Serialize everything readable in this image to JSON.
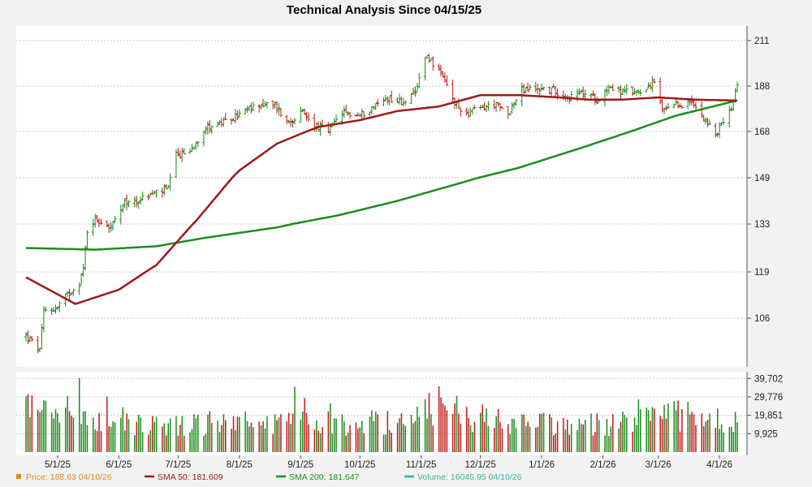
{
  "chart_data": {
    "type": "stock",
    "title": "Technical Analysis Since 04/15/25",
    "price_axis": {
      "ylim": [
        92,
        215
      ],
      "ticks": [
        106,
        119,
        133,
        149,
        168,
        188,
        211
      ],
      "tick_labels": [
        "106",
        "119",
        "133",
        "149",
        "168",
        "188",
        "211"
      ]
    },
    "volume_axis": {
      "ylim": [
        0,
        42000
      ],
      "ticks": [
        9925,
        19851,
        29776,
        39702
      ],
      "tick_labels": [
        "9,925",
        "19,851",
        "29,776",
        "39,702"
      ]
    },
    "x_axis": {
      "tick_labels": [
        "5/1/25",
        "6/1/25",
        "7/1/25",
        "8/1/25",
        "9/1/25",
        "10/1/25",
        "11/1/25",
        "12/1/25",
        "1/1/26",
        "2/1/26",
        "3/1/26",
        "4/1/26"
      ]
    },
    "close_anchors": [
      [
        "2025-04-15",
        101
      ],
      [
        "2025-04-22",
        97
      ],
      [
        "2025-04-24",
        108
      ],
      [
        "2025-05-01",
        109
      ],
      [
        "2025-05-05",
        112
      ],
      [
        "2025-05-12",
        116
      ],
      [
        "2025-05-14",
        120
      ],
      [
        "2025-05-16",
        131
      ],
      [
        "2025-05-20",
        135
      ],
      [
        "2025-05-28",
        132
      ],
      [
        "2025-06-04",
        140
      ],
      [
        "2025-06-10",
        141
      ],
      [
        "2025-06-20",
        144
      ],
      [
        "2025-06-26",
        145
      ],
      [
        "2025-06-30",
        158
      ],
      [
        "2025-07-07",
        160
      ],
      [
        "2025-07-15",
        170
      ],
      [
        "2025-07-25",
        172
      ],
      [
        "2025-08-04",
        177
      ],
      [
        "2025-08-11",
        180
      ],
      [
        "2025-08-20",
        179
      ],
      [
        "2025-08-25",
        172
      ],
      [
        "2025-09-02",
        176
      ],
      [
        "2025-09-08",
        171
      ],
      [
        "2025-09-15",
        168
      ],
      [
        "2025-09-22",
        176
      ],
      [
        "2025-10-01",
        175
      ],
      [
        "2025-10-08",
        179
      ],
      [
        "2025-10-15",
        183
      ],
      [
        "2025-10-22",
        181
      ],
      [
        "2025-10-29",
        184
      ],
      [
        "2025-11-03",
        204
      ],
      [
        "2025-11-06",
        201
      ],
      [
        "2025-11-12",
        192
      ],
      [
        "2025-11-18",
        180
      ],
      [
        "2025-11-24",
        176
      ],
      [
        "2025-12-01",
        178
      ],
      [
        "2025-12-08",
        180
      ],
      [
        "2025-12-15",
        176
      ],
      [
        "2025-12-22",
        186
      ],
      [
        "2025-12-31",
        187
      ],
      [
        "2026-01-08",
        186
      ],
      [
        "2026-01-15",
        183
      ],
      [
        "2026-01-22",
        185
      ],
      [
        "2026-01-29",
        182
      ],
      [
        "2026-02-04",
        188
      ],
      [
        "2026-02-12",
        185
      ],
      [
        "2026-02-20",
        186
      ],
      [
        "2026-02-27",
        190
      ],
      [
        "2026-03-03",
        177
      ],
      [
        "2026-03-10",
        179
      ],
      [
        "2026-03-17",
        181
      ],
      [
        "2026-03-23",
        176
      ],
      [
        "2026-03-30",
        166
      ],
      [
        "2026-04-02",
        172
      ],
      [
        "2026-04-06",
        176
      ],
      [
        "2026-04-10",
        188.63
      ]
    ],
    "volume_anchors": [
      [
        "2025-04-15",
        26000
      ],
      [
        "2025-05-01",
        22000
      ],
      [
        "2025-05-20",
        18000
      ],
      [
        "2025-06-20",
        15000
      ],
      [
        "2025-07-20",
        16000
      ],
      [
        "2025-08-20",
        15000
      ],
      [
        "2025-09-20",
        16000
      ],
      [
        "2025-10-20",
        17000
      ],
      [
        "2025-11-05",
        26000
      ],
      [
        "2025-11-25",
        20000
      ],
      [
        "2025-12-20",
        15000
      ],
      [
        "2026-01-20",
        15000
      ],
      [
        "2026-02-20",
        16000
      ],
      [
        "2026-03-05",
        21000
      ],
      [
        "2026-03-25",
        17000
      ],
      [
        "2026-04-10",
        16045.95
      ]
    ],
    "sma50_anchors": [
      [
        "2025-04-15",
        117.5
      ],
      [
        "2025-05-10",
        110
      ],
      [
        "2025-06-01",
        114
      ],
      [
        "2025-06-20",
        121
      ],
      [
        "2025-07-10",
        134
      ],
      [
        "2025-08-01",
        152
      ],
      [
        "2025-08-20",
        163
      ],
      [
        "2025-09-10",
        170
      ],
      [
        "2025-10-01",
        173
      ],
      [
        "2025-10-20",
        177
      ],
      [
        "2025-11-10",
        179
      ],
      [
        "2025-12-01",
        184
      ],
      [
        "2025-12-20",
        184
      ],
      [
        "2026-01-10",
        183
      ],
      [
        "2026-01-25",
        182
      ],
      [
        "2026-02-10",
        182
      ],
      [
        "2026-03-01",
        183
      ],
      [
        "2026-03-20",
        182
      ],
      [
        "2026-04-10",
        181.609
      ]
    ],
    "sma200_anchors": [
      [
        "2025-04-15",
        126
      ],
      [
        "2025-05-20",
        125.5
      ],
      [
        "2025-06-20",
        126.5
      ],
      [
        "2025-07-15",
        129
      ],
      [
        "2025-08-20",
        132
      ],
      [
        "2025-09-20",
        136
      ],
      [
        "2025-10-20",
        141
      ],
      [
        "2025-11-20",
        147
      ],
      [
        "2025-12-20",
        153
      ],
      [
        "2026-01-20",
        161
      ],
      [
        "2026-02-15",
        168
      ],
      [
        "2026-03-10",
        175
      ],
      [
        "2026-04-10",
        181.647
      ]
    ],
    "legend": [
      {
        "key": "price",
        "label": "Price: 188.63  04/10/26",
        "color": "#e08a1e",
        "marker": "square"
      },
      {
        "key": "sma50",
        "label": "SMA 50: 181.609",
        "color": "#a01818",
        "marker": "line"
      },
      {
        "key": "sma200",
        "label": "SMA 200: 181.647",
        "color": "#1e8c1e",
        "marker": "line"
      },
      {
        "key": "volume",
        "label": "Volume: 16045.95  04/10/26",
        "color": "#3cb0a0",
        "marker": "line"
      }
    ],
    "colors": {
      "up": "#1a8a1a",
      "down": "#c01818",
      "sma50": "#a01818",
      "sma200": "#1e8c1e"
    },
    "grid": true
  }
}
